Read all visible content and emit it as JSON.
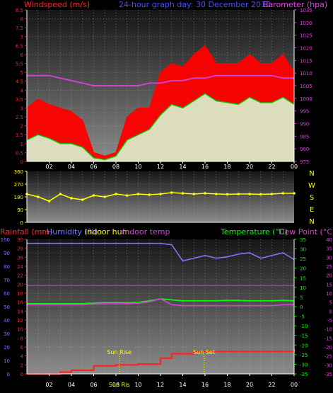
{
  "header": {
    "windspeed_label": "Windspeed (m/s)",
    "title": "24-hour graph day: 30 December 2013",
    "barometer_label": "Barometer (hpa)"
  },
  "colors": {
    "background": "#000000",
    "panel_top": "#1a1a1a",
    "panel_bottom": "#8a8a8a",
    "grid": "#c0c0c0",
    "wind_gust": "#ff0000",
    "wind_avg": "#00cc00",
    "wind_avg_fill": "#d8f5d0",
    "barometer": "#cc44cc",
    "wind_dir": "#ffff00",
    "rainfall": "#ff2222",
    "humidity": "#7777ff",
    "indoor_hum": "#ffff00",
    "indoor_temp": "#cc44cc",
    "temperature": "#00ff00",
    "dew_point": "#cc44cc",
    "axis_text": "#ffffff",
    "sun_marker": "#ffff00"
  },
  "x_ticks": [
    "02",
    "04",
    "06",
    "08",
    "10",
    "12",
    "14",
    "16",
    "18",
    "20",
    "22",
    "00"
  ],
  "chart_data": [
    {
      "type": "line",
      "title": "24-hour graph day: 30 December 2013",
      "ylabel": "Windspeed (m/s)",
      "y2label": "Barometer (hpa)",
      "ylim": [
        0,
        8.5
      ],
      "y_ticks": [
        0,
        0.5,
        1,
        1.5,
        2,
        2.5,
        3,
        3.5,
        4,
        4.5,
        5,
        5.5,
        6,
        6.5,
        7,
        7.5,
        8,
        8.5
      ],
      "y2lim": [
        975,
        1035
      ],
      "y2_ticks": [
        975,
        980,
        985,
        990,
        995,
        1000,
        1005,
        1010,
        1015,
        1020,
        1025,
        1030,
        1035
      ],
      "x_hours": [
        0,
        1,
        2,
        3,
        4,
        5,
        6,
        7,
        8,
        9,
        10,
        11,
        12,
        13,
        14,
        15,
        16,
        17,
        18,
        19,
        20,
        21,
        22,
        23,
        24
      ],
      "series": [
        {
          "name": "gust",
          "axis": "left",
          "values": [
            3.0,
            3.5,
            3.2,
            3.0,
            2.8,
            2.3,
            0.5,
            0.3,
            0.5,
            2.5,
            3.0,
            3.0,
            5.0,
            5.5,
            5.3,
            6.0,
            6.5,
            5.5,
            5.5,
            5.5,
            6.0,
            5.5,
            5.5,
            6.0,
            5.0
          ]
        },
        {
          "name": "average",
          "axis": "left",
          "values": [
            1.2,
            1.5,
            1.3,
            1.0,
            1.0,
            0.8,
            0.2,
            0.1,
            0.3,
            1.2,
            1.5,
            1.8,
            2.6,
            3.2,
            3.0,
            3.4,
            3.8,
            3.4,
            3.3,
            3.2,
            3.6,
            3.3,
            3.3,
            3.6,
            3.2
          ]
        },
        {
          "name": "barometer",
          "axis": "right",
          "values": [
            1009,
            1009,
            1009,
            1008,
            1007,
            1006,
            1005,
            1005,
            1005,
            1005,
            1005,
            1006,
            1006,
            1007,
            1007,
            1008,
            1008,
            1009,
            1009,
            1009,
            1009,
            1009,
            1009,
            1008,
            1008
          ]
        }
      ]
    },
    {
      "type": "scatter",
      "ylim": [
        0,
        360
      ],
      "y_ticks": [
        0,
        90,
        180,
        270,
        360
      ],
      "compass_labels": [
        "N",
        "W",
        "S",
        "E",
        "N"
      ],
      "x_hours": [
        0,
        1,
        2,
        3,
        4,
        5,
        6,
        7,
        8,
        9,
        10,
        11,
        12,
        13,
        14,
        15,
        16,
        17,
        18,
        19,
        20,
        21,
        22,
        23,
        24
      ],
      "series": [
        {
          "name": "wind_direction",
          "values": [
            200,
            180,
            150,
            200,
            170,
            160,
            190,
            180,
            200,
            190,
            200,
            195,
            200,
            210,
            205,
            200,
            205,
            200,
            198,
            200,
            200,
            198,
            200,
            205,
            205
          ]
        }
      ]
    },
    {
      "type": "line",
      "labels": {
        "rainfall": "Rainfall (mm)",
        "humidity": "Humidity (%)",
        "indoor_hum": "Indoor hum",
        "indoor_temp": "Indoor temp",
        "temperature": "Temperature (°C)",
        "dew_point": "Dew Point (°C)"
      },
      "y_left_percent_ticks": [
        0,
        10,
        20,
        30,
        40,
        50,
        60,
        70,
        80,
        90,
        100
      ],
      "y_left_mm_ticks": [
        0,
        2,
        4,
        6,
        8,
        10,
        12,
        14,
        16,
        18,
        20,
        22,
        24,
        26,
        28,
        30
      ],
      "y_right_temp_ticks": [
        -35,
        -30,
        -25,
        -20,
        -15,
        -10,
        -5,
        0,
        5,
        10,
        15,
        20,
        25,
        30,
        35
      ],
      "y_right_dew_ticks": [
        -35,
        -30,
        -25,
        -20,
        -15,
        -10,
        -5,
        0,
        5,
        10,
        15,
        20,
        25,
        30,
        35,
        40
      ],
      "x_hours": [
        0,
        1,
        2,
        3,
        4,
        5,
        6,
        7,
        8,
        9,
        10,
        11,
        12,
        13,
        14,
        15,
        16,
        17,
        18,
        19,
        20,
        21,
        22,
        23,
        24
      ],
      "series": [
        {
          "name": "Humidity (%)",
          "values": [
            97,
            97,
            97,
            97,
            97,
            97,
            97,
            97,
            97,
            97,
            97,
            97,
            97,
            96,
            84,
            86,
            88,
            86,
            87,
            89,
            90,
            86,
            88,
            90,
            85
          ]
        },
        {
          "name": "Indoor temp",
          "values": [
            11,
            11,
            11,
            11,
            11,
            11,
            11,
            11,
            11,
            11,
            11,
            11,
            11,
            11,
            11,
            11,
            11,
            11,
            11,
            11,
            11,
            11,
            11,
            11,
            11
          ]
        },
        {
          "name": "Temperature (°C)",
          "values": [
            1.5,
            1.5,
            1.5,
            1.5,
            1.5,
            1.5,
            1.8,
            2.0,
            2.0,
            2.0,
            2.2,
            3.0,
            4.0,
            3.5,
            3.0,
            3.0,
            3.0,
            3.0,
            3.2,
            3.2,
            3.0,
            3.0,
            3.0,
            3.2,
            3.0
          ]
        },
        {
          "name": "Dew Point (°C)",
          "values": [
            1.0,
            1.0,
            1.0,
            1.0,
            1.0,
            1.0,
            1.3,
            1.5,
            1.5,
            1.5,
            1.8,
            2.5,
            4.0,
            1.0,
            0.5,
            0.5,
            0.5,
            0.5,
            0.5,
            0.5,
            0.5,
            0.5,
            0.5,
            1.0,
            1.0
          ]
        },
        {
          "name": "Rainfall (mm)",
          "values": [
            0.0,
            0.0,
            0.0,
            0.4,
            0.8,
            0.8,
            1.8,
            1.8,
            2.0,
            2.0,
            2.2,
            2.2,
            3.5,
            4.5,
            4.5,
            5.0,
            5.0,
            5.0,
            5.0,
            5.0,
            5.0,
            5.0,
            5.0,
            5.0,
            5.5
          ]
        }
      ],
      "sun_rise_label": "Sun Rise",
      "sun_set_label": "Sun Set",
      "sun_rise_hour": 8.3,
      "sun_set_hour": 15.9,
      "sun_x_label": "Sun Ris"
    }
  ]
}
